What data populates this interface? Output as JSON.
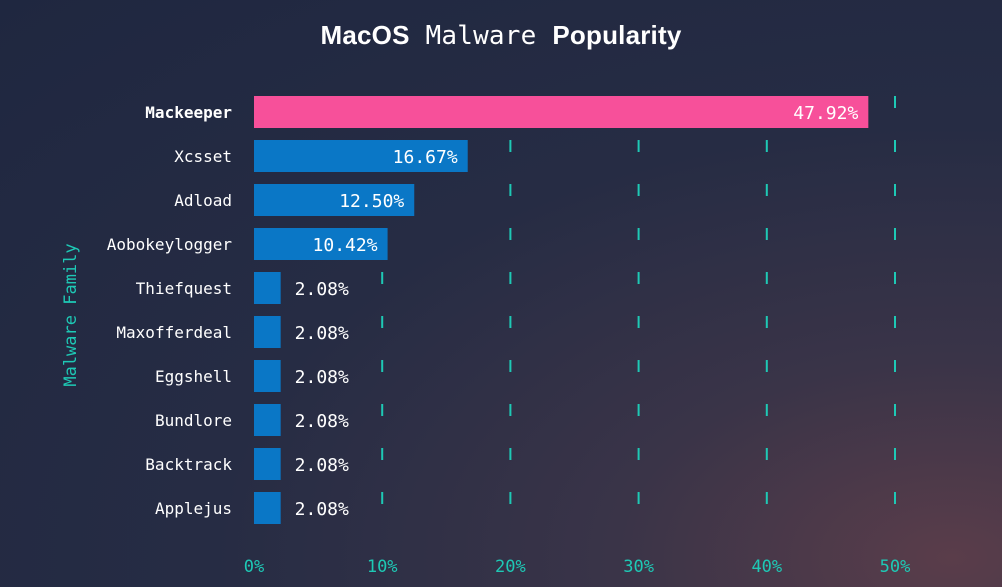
{
  "title": {
    "part1": "MacOS",
    "part2": "Malware",
    "part3": "Popularity"
  },
  "chart_data": {
    "type": "bar",
    "orientation": "horizontal",
    "ylabel": "Malware Family",
    "xlabel": "",
    "xlim": [
      0,
      50
    ],
    "x_ticks": [
      "0%",
      "10%",
      "20%",
      "30%",
      "40%",
      "50%"
    ],
    "categories": [
      "Mackeeper",
      "Xcsset",
      "Adload",
      "Aobokeylogger",
      "Thiefquest",
      "Maxofferdeal",
      "Eggshell",
      "Bundlore",
      "Backtrack",
      "Applejus"
    ],
    "values": [
      47.92,
      16.67,
      12.5,
      10.42,
      2.08,
      2.08,
      2.08,
      2.08,
      2.08,
      2.08
    ],
    "value_labels": [
      "47.92%",
      "16.67%",
      "12.50%",
      "10.42%",
      "2.08%",
      "2.08%",
      "2.08%",
      "2.08%",
      "2.08%",
      "2.08%"
    ],
    "highlight_index": 0,
    "grid": "vertical dashed",
    "colors": {
      "highlight": "#f7509a",
      "bar": "#0a77c6",
      "grid": "#1ec9b5",
      "axis_text": "#1ec9b5",
      "text": "#ffffff"
    }
  }
}
